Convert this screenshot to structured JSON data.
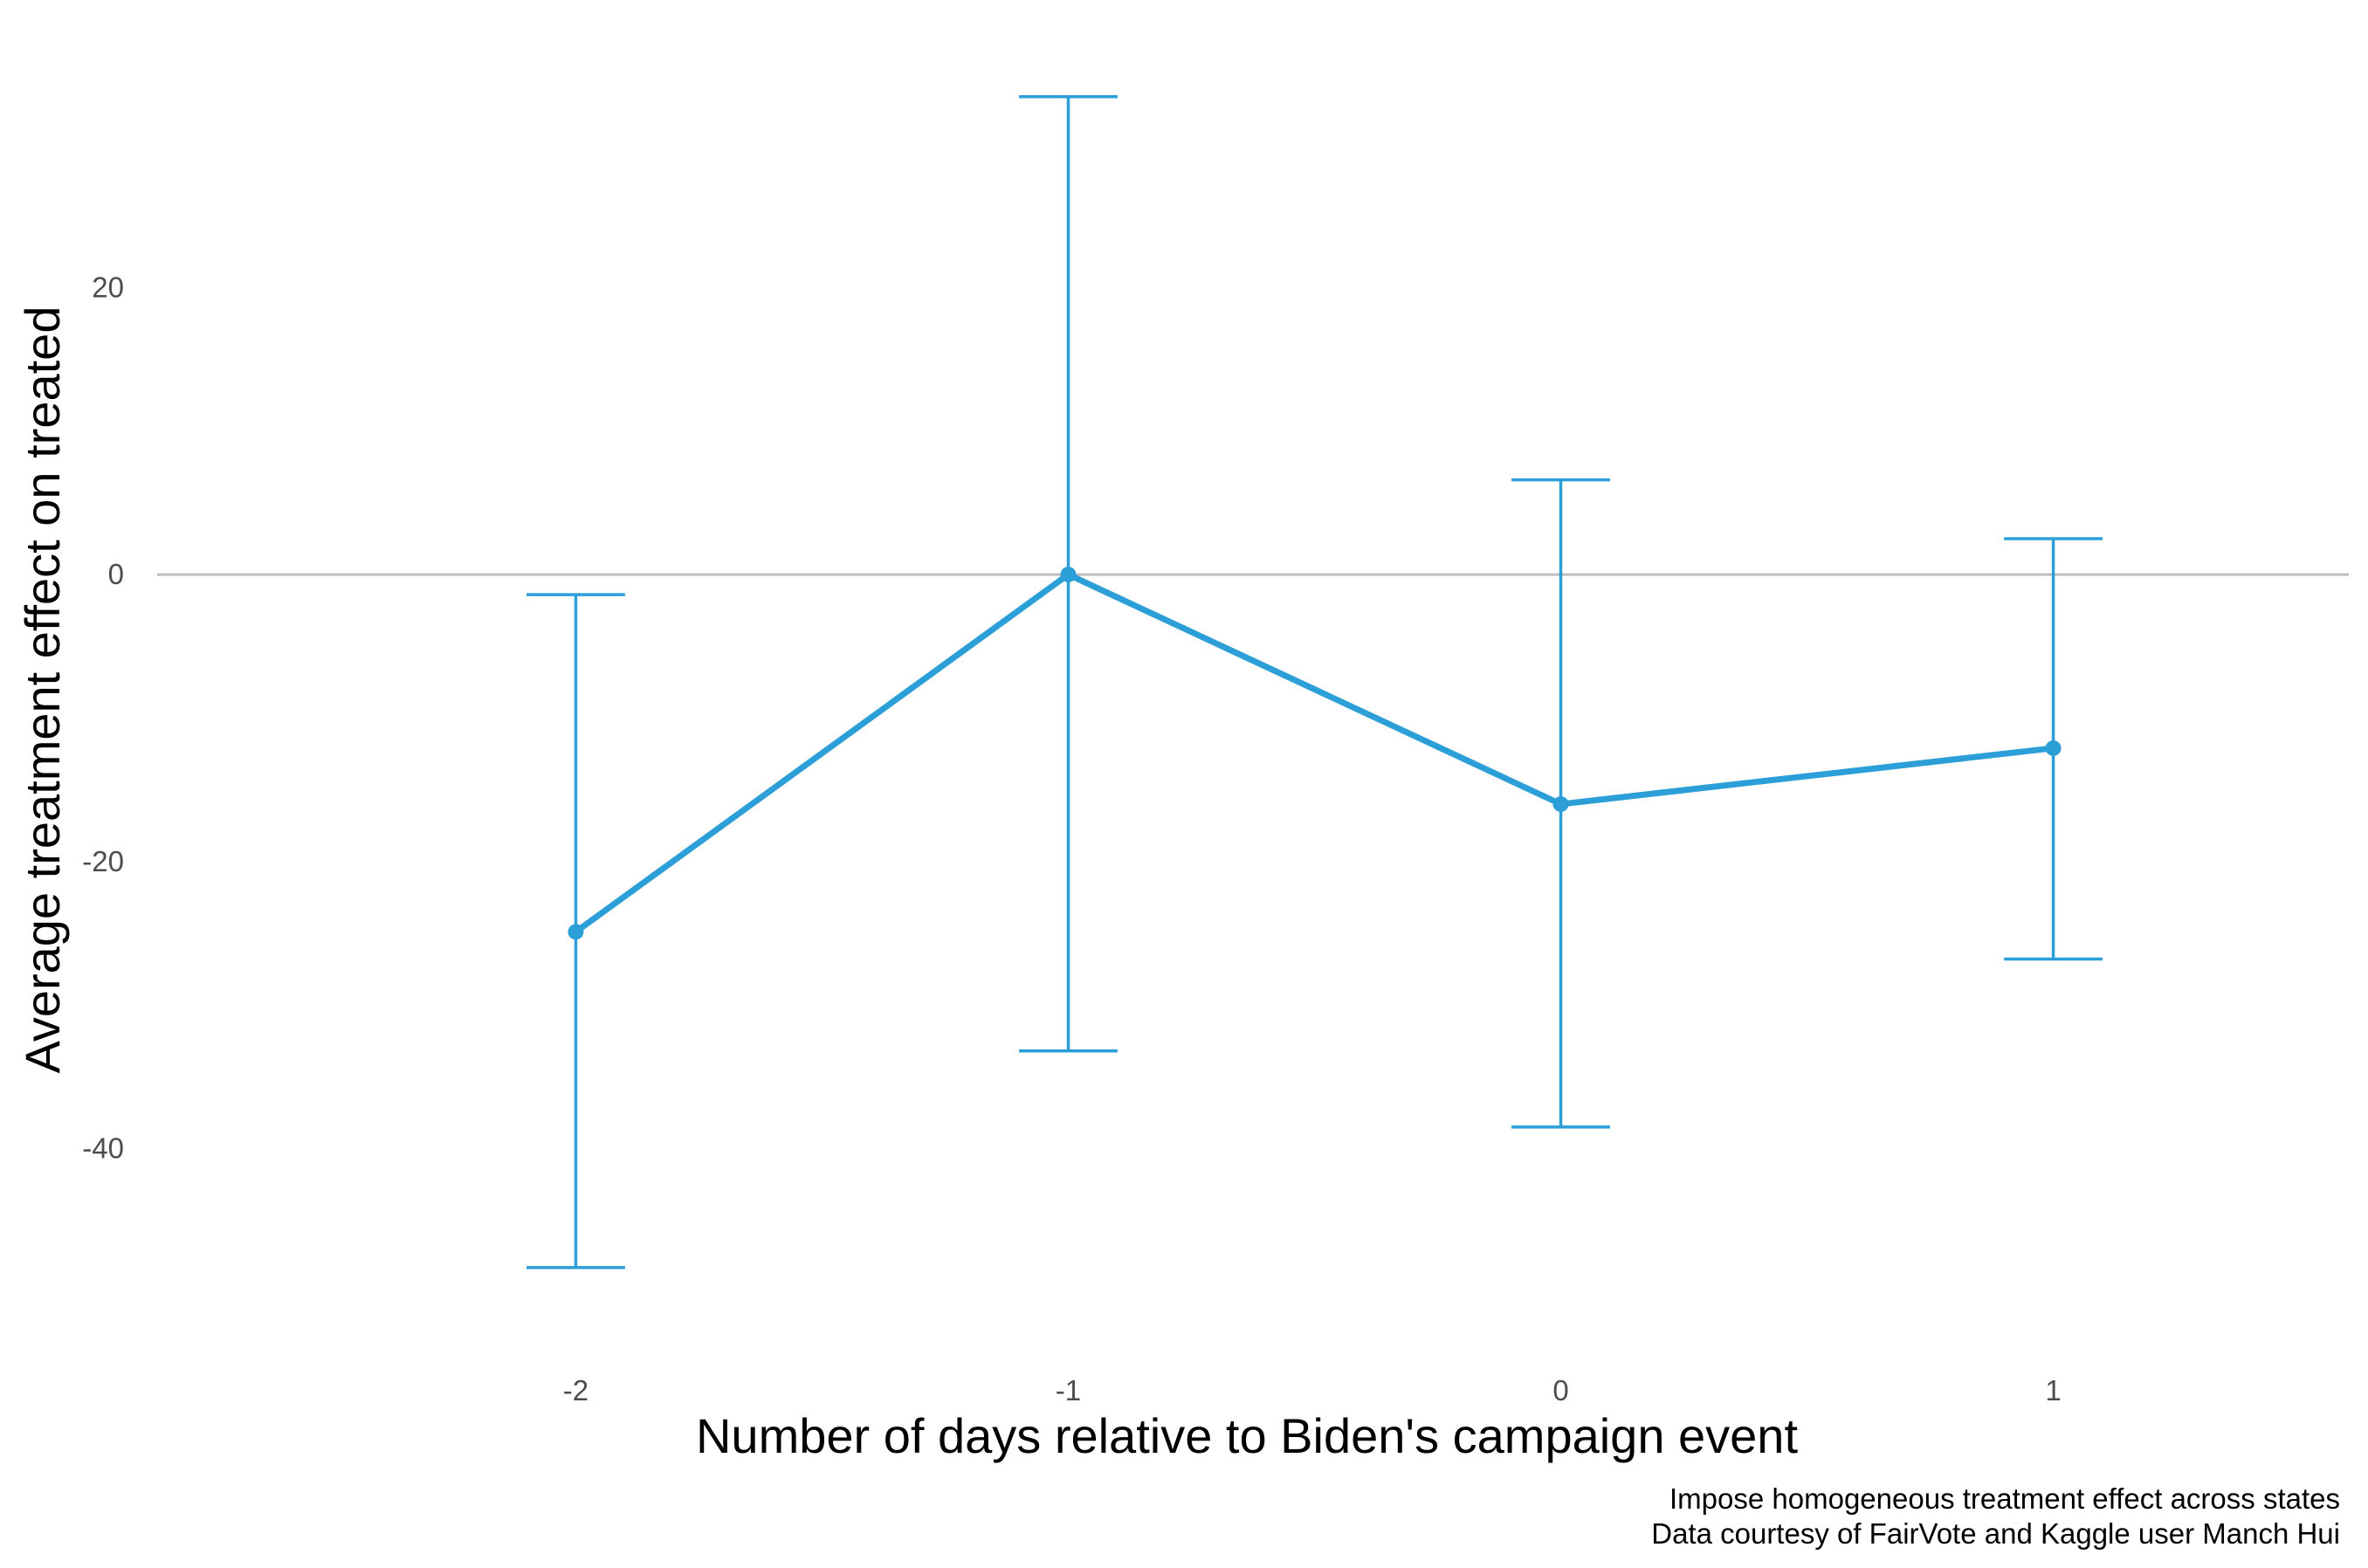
{
  "chart_data": {
    "type": "line",
    "title": "",
    "xlabel": "Number of days relative to Biden's campaign event",
    "ylabel": "Average treatment effect on treated",
    "caption_lines": [
      "Impose homogeneous treatment effect across states",
      "Data courtesy of FairVote and Kaggle user Manch Hui"
    ],
    "x_ticks": [
      {
        "value": -2,
        "label": "-2"
      },
      {
        "value": -1,
        "label": "-1"
      },
      {
        "value": 0,
        "label": "0"
      },
      {
        "value": 1,
        "label": "1"
      }
    ],
    "y_ticks": [
      {
        "value": 20,
        "label": "20"
      },
      {
        "value": 0,
        "label": "0"
      },
      {
        "value": -20,
        "label": "-20"
      },
      {
        "value": -40,
        "label": "-40"
      }
    ],
    "xlim": [
      -2.85,
      1.6
    ],
    "ylim": [
      -55,
      37
    ],
    "reference_line_y": 0,
    "grid": false,
    "series": [
      {
        "x": [
          -2,
          -1,
          0,
          1
        ],
        "y": [
          -24.9,
          0,
          -16,
          -12.1
        ],
        "ymin": [
          -48.3,
          -33.2,
          -38.5,
          -26.8
        ],
        "ymax": [
          -1.4,
          33.3,
          6.6,
          2.5
        ],
        "color": "#2c9fd8"
      }
    ],
    "colors": {
      "series": "#2c9fd8",
      "reference_line": "#bdbdbd",
      "tick_text": "#4d4d4d",
      "title_text": "#000000"
    }
  }
}
